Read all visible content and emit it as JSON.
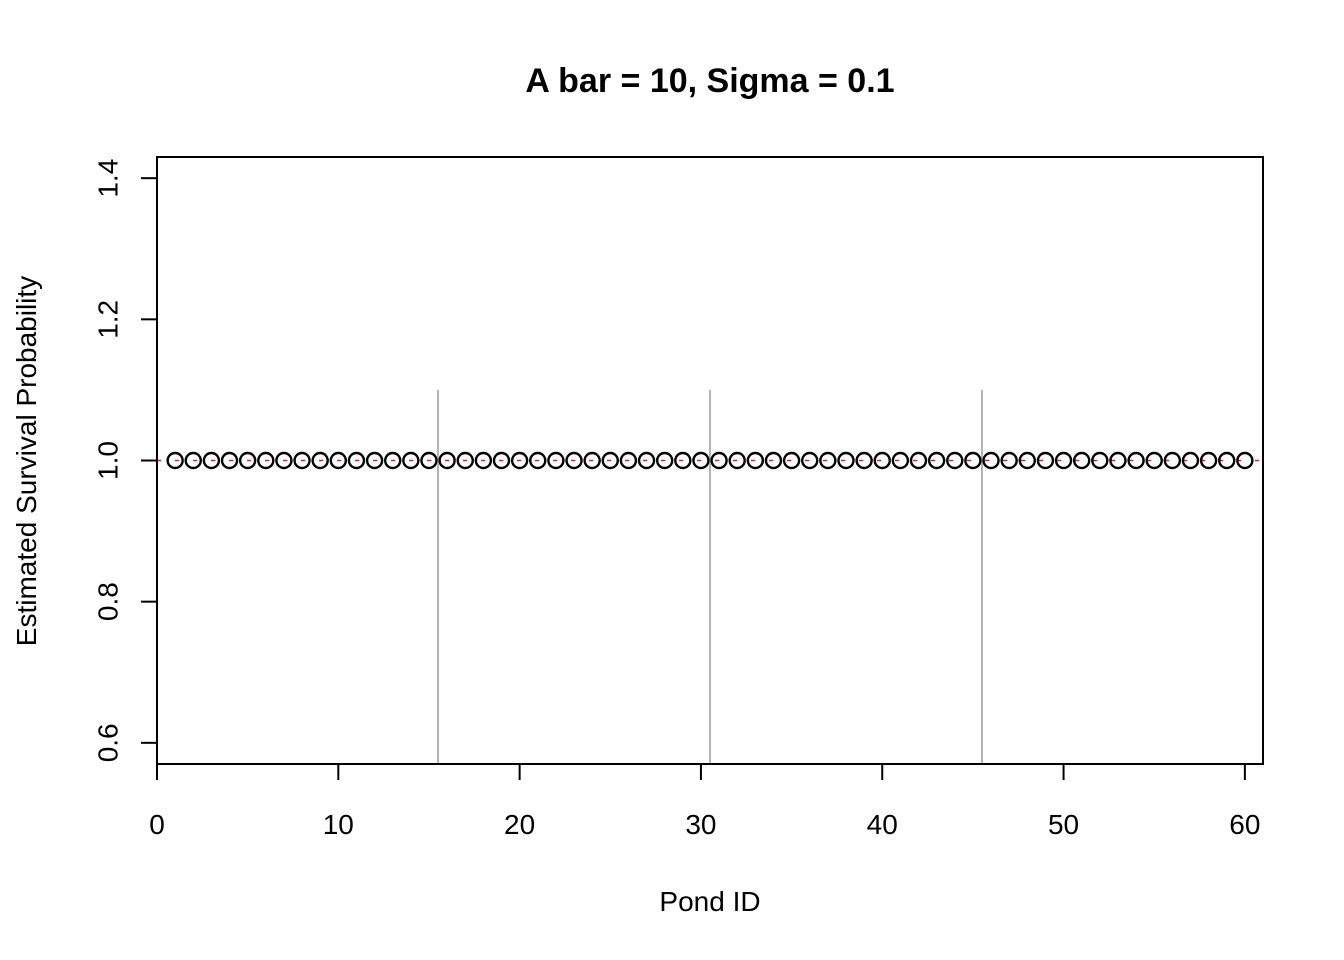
{
  "chart_data": {
    "type": "scatter",
    "title": "A bar = 10, Sigma = 0.1",
    "xlabel": "Pond ID",
    "ylabel": "Estimated Survival Probability",
    "xlim": [
      0,
      61
    ],
    "ylim": [
      0.57,
      1.43
    ],
    "xticks": [
      0,
      10,
      20,
      30,
      40,
      50,
      60
    ],
    "yticks": [
      0.6,
      0.8,
      1.0,
      1.2,
      1.4
    ],
    "x_tick_labels": [
      "0",
      "10",
      "20",
      "30",
      "40",
      "50",
      "60"
    ],
    "y_tick_labels": [
      "0.6",
      "0.8",
      "1.0",
      "1.2",
      "1.4"
    ],
    "grid": false,
    "series": [
      {
        "x_start": 1,
        "x_end": 60,
        "value": 1.0,
        "marker": "open-circle",
        "color": "#000000"
      }
    ],
    "reference_line": {
      "y": 1.0,
      "style": "dashed",
      "color": "#e8202a",
      "x_from": 0,
      "x_to": 61
    },
    "group_dividers": {
      "x": [
        15.5,
        30.5,
        45.5
      ],
      "y_from": 0.57,
      "y_to": 1.1,
      "color": "#b3b3b3"
    }
  }
}
